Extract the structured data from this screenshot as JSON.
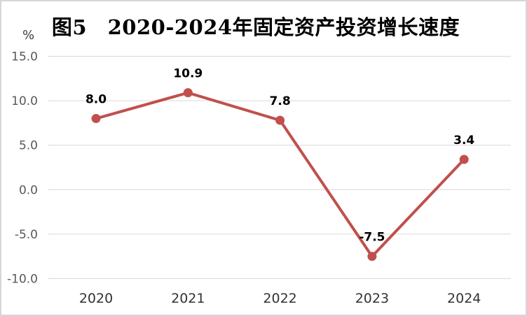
{
  "chart_data": {
    "type": "line",
    "title": "图5　2020-2024年固定资产投资增长速度",
    "unit_label": "%",
    "categories": [
      "2020",
      "2021",
      "2022",
      "2023",
      "2024"
    ],
    "values": [
      8.0,
      10.9,
      7.8,
      -7.5,
      3.4
    ],
    "data_labels": [
      "8.0",
      "10.9",
      "7.8",
      "-7.5",
      "3.4"
    ],
    "y_ticks": [
      {
        "label": "15.0",
        "value": 15
      },
      {
        "label": "10.0",
        "value": 10
      },
      {
        "label": "5.0",
        "value": 5
      },
      {
        "label": "0.0",
        "value": 0
      },
      {
        "label": "-5.0",
        "value": -5
      },
      {
        "label": "-10.0",
        "value": -10
      }
    ],
    "ylim": [
      -10,
      15
    ],
    "grid": true,
    "legend_position": "none",
    "series_name": "固定资产投资增长速度",
    "series_color": "#c0504d",
    "gridline_color": "#d9d9d9",
    "frame_border_color": "#d6d6d6"
  }
}
